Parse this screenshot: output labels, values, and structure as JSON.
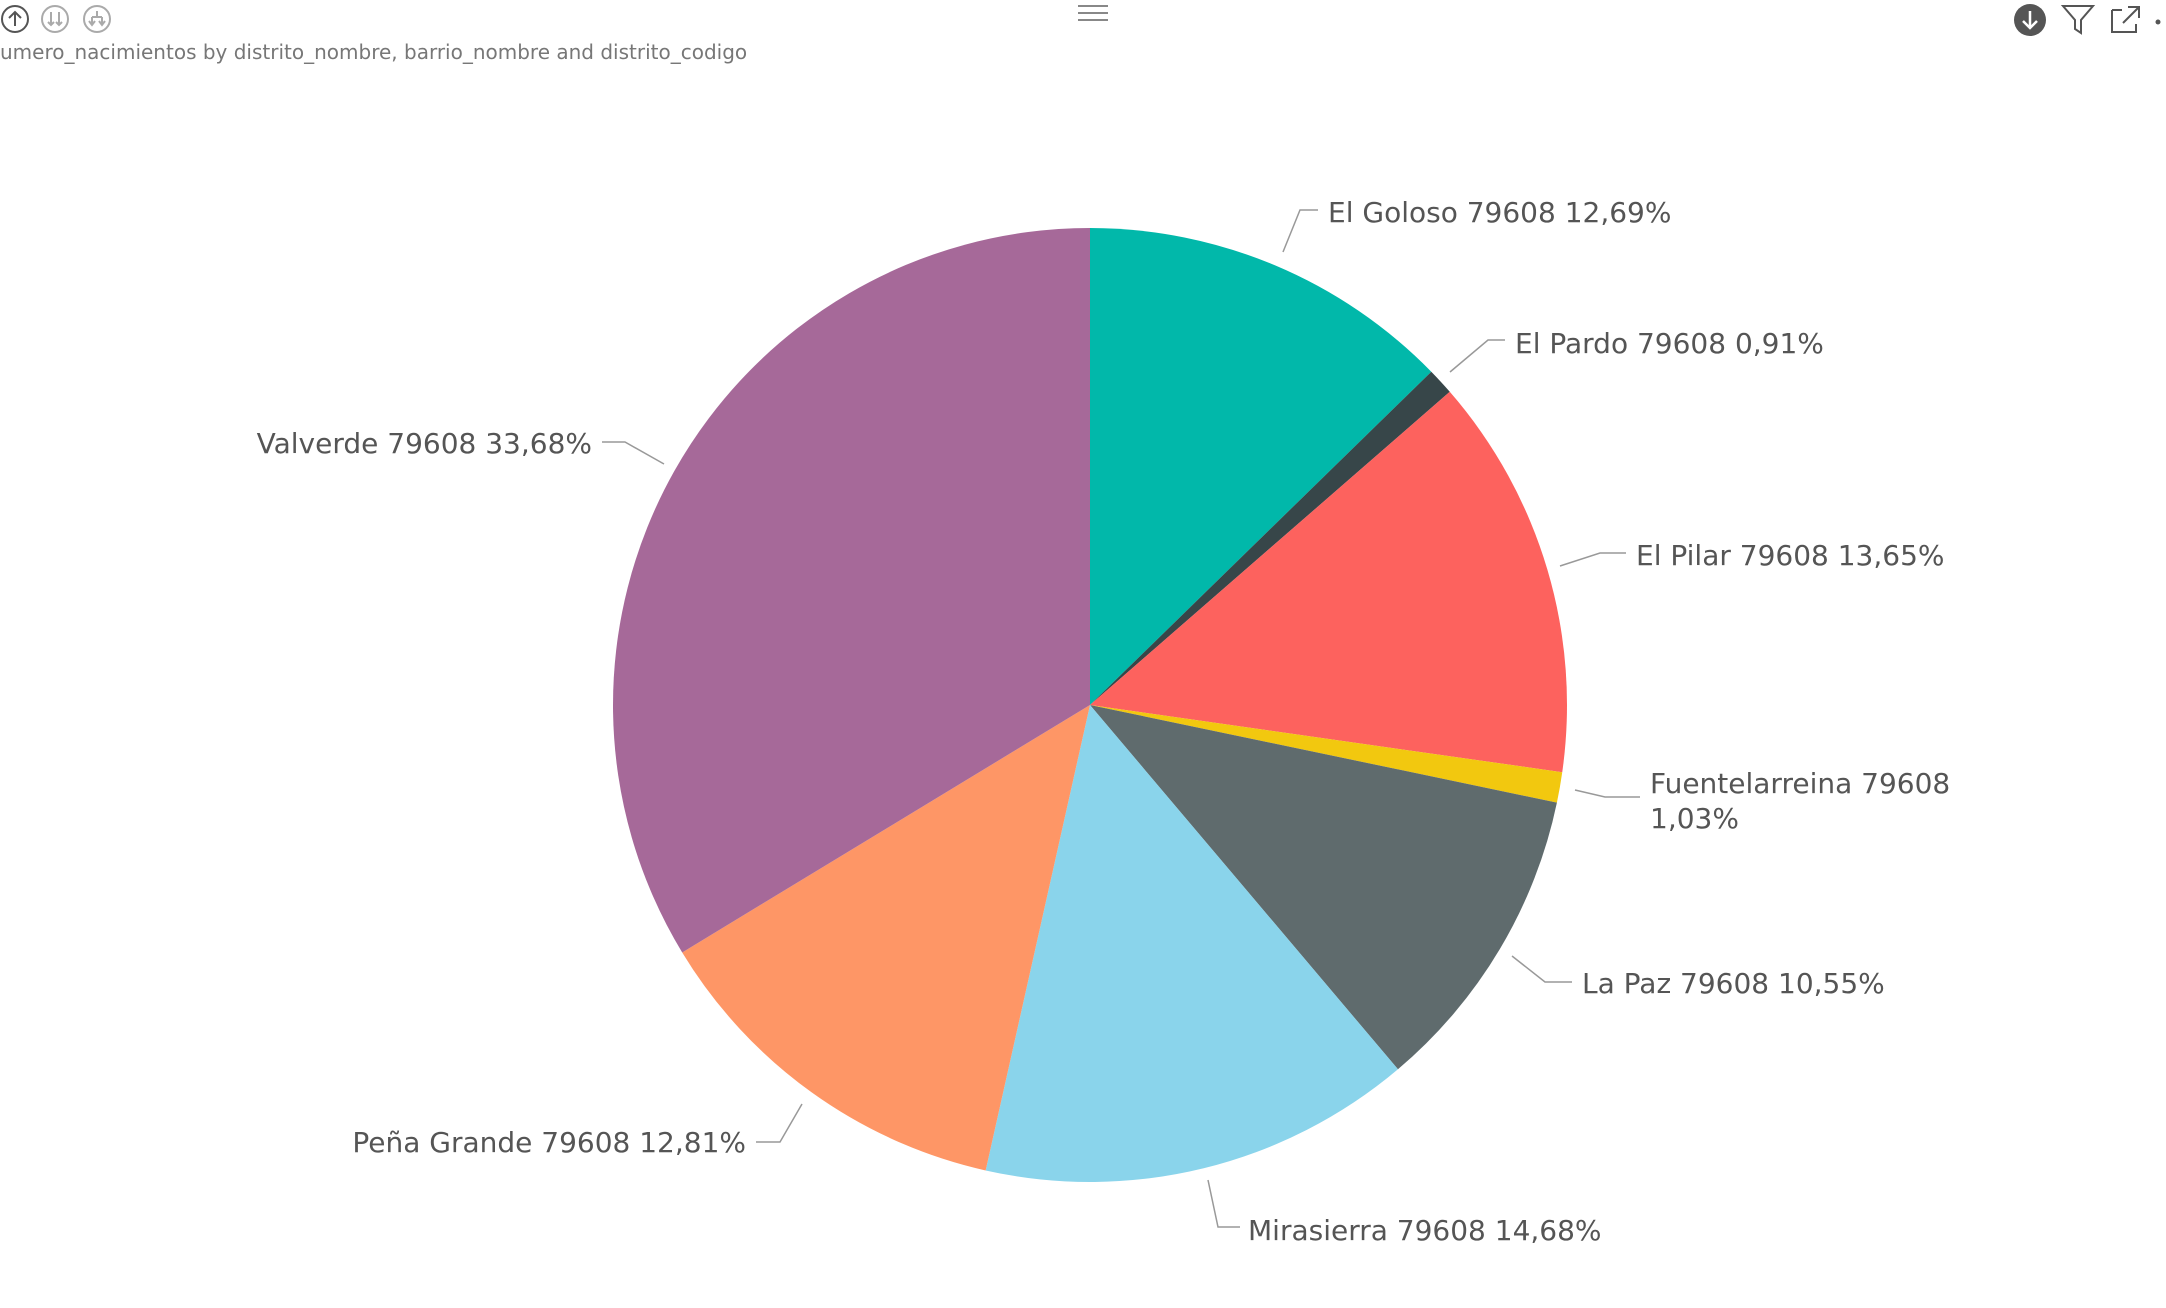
{
  "header": {
    "visual_title": "umero_nacimientos by distrito_nombre, barrio_nombre and distrito_codigo"
  },
  "toolbar": {
    "left_icons": [
      "drill-up-icon",
      "expand-all-down-icon",
      "drill-hierarchy-icon"
    ],
    "center_icon": "drag-handle-icon",
    "right_icons": [
      "drill-down-icon",
      "filter-icon",
      "focus-mode-icon",
      "more-options-icon"
    ]
  },
  "chart_data": {
    "type": "pie",
    "title": "umero_nacimientos by distrito_nombre, barrio_nombre and distrito_codigo",
    "slices": [
      {
        "category": "El Goloso",
        "group": "79608",
        "percent": 12.69,
        "label": "El Goloso 79608 12,69%",
        "color": "#01B8AA"
      },
      {
        "category": "El Pardo",
        "group": "79608",
        "percent": 0.91,
        "label": "El Pardo 79608 0,91%",
        "color": "#374649"
      },
      {
        "category": "El Pilar",
        "group": "79608",
        "percent": 13.65,
        "label": "El Pilar 79608 13,65%",
        "color": "#FD625E"
      },
      {
        "category": "Fuentelarreina",
        "group": "79608",
        "percent": 1.03,
        "label": "Fuentelarreina 79608 1,03%",
        "color": "#F2C80F"
      },
      {
        "category": "La Paz",
        "group": "79608",
        "percent": 10.55,
        "label": "La Paz 79608 10,55%",
        "color": "#5F6B6D"
      },
      {
        "category": "Mirasierra",
        "group": "79608",
        "percent": 14.68,
        "label": "Mirasierra 79608 14,68%",
        "color": "#8AD4EB"
      },
      {
        "category": "Peña Grande",
        "group": "79608",
        "percent": 12.81,
        "label": "Peña Grande 79608 12,81%",
        "color": "#FE9666"
      },
      {
        "category": "Valverde",
        "group": "79608",
        "percent": 33.68,
        "label": "Valverde 79608 33,68%",
        "color": "#A66999"
      }
    ]
  }
}
